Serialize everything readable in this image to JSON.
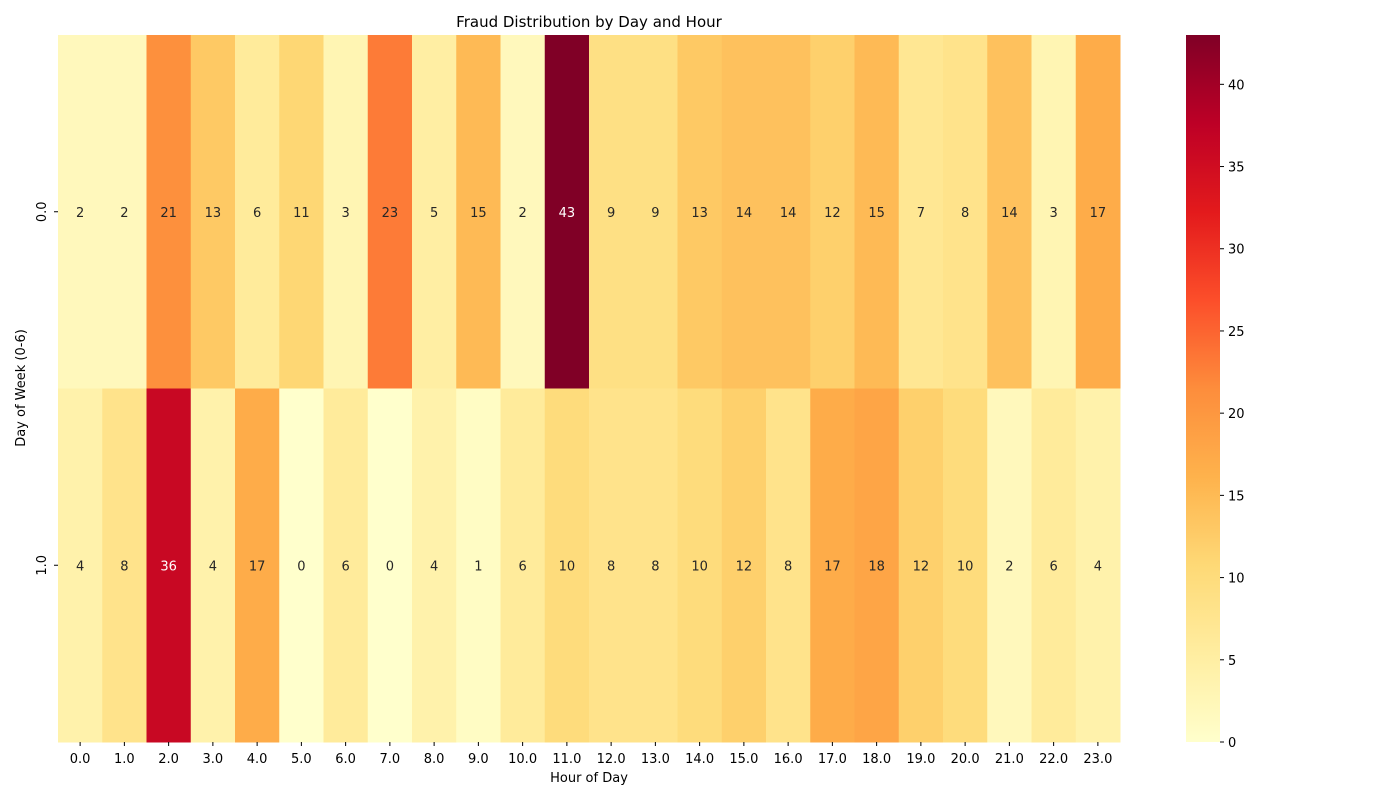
{
  "chart_data": {
    "type": "heatmap",
    "title": "Fraud Distribution by Day and Hour",
    "xlabel": "Hour of Day",
    "ylabel": "Day of Week (0-6)",
    "x_categories": [
      "0.0",
      "1.0",
      "2.0",
      "3.0",
      "4.0",
      "5.0",
      "6.0",
      "7.0",
      "8.0",
      "9.0",
      "10.0",
      "11.0",
      "12.0",
      "13.0",
      "14.0",
      "15.0",
      "16.0",
      "17.0",
      "18.0",
      "19.0",
      "20.0",
      "21.0",
      "22.0",
      "23.0"
    ],
    "y_categories": [
      "0.0",
      "1.0"
    ],
    "values": [
      [
        2,
        2,
        21,
        13,
        6,
        11,
        3,
        23,
        5,
        15,
        2,
        43,
        9,
        9,
        13,
        14,
        14,
        12,
        15,
        7,
        8,
        14,
        3,
        17
      ],
      [
        4,
        8,
        36,
        4,
        17,
        0,
        6,
        0,
        4,
        1,
        6,
        10,
        8,
        8,
        10,
        12,
        8,
        17,
        18,
        12,
        10,
        2,
        6,
        4
      ]
    ],
    "colorbar": {
      "vmin": 0,
      "vmax": 43,
      "ticks": [
        0,
        5,
        10,
        15,
        20,
        25,
        30,
        35,
        40
      ],
      "colormap": "YlOrRd"
    },
    "annotations": true
  }
}
